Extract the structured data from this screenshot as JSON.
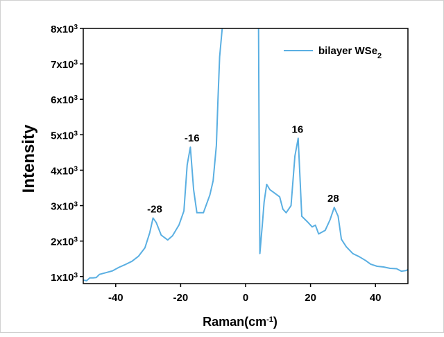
{
  "chart_data": {
    "type": "line",
    "title": "",
    "xlabel": "Raman(cm",
    "xlabel_sup": "-1",
    "xlabel_suffix": ")",
    "ylabel": "Intensity",
    "xlim": [
      -50,
      50
    ],
    "ylim": [
      800,
      8000
    ],
    "grid": false,
    "legend_placement": "top-right",
    "line_color": "#5aafe2",
    "x_ticks": [
      {
        "value": -40,
        "label": "-40"
      },
      {
        "value": -20,
        "label": "-20"
      },
      {
        "value": 0,
        "label": "0"
      },
      {
        "value": 20,
        "label": "20"
      },
      {
        "value": 40,
        "label": "40"
      }
    ],
    "y_ticks": [
      {
        "value": 1000,
        "mant": "1x10",
        "exp": "3"
      },
      {
        "value": 2000,
        "mant": "2x10",
        "exp": "3"
      },
      {
        "value": 3000,
        "mant": "3x10",
        "exp": "3"
      },
      {
        "value": 4000,
        "mant": "4x10",
        "exp": "3"
      },
      {
        "value": 5000,
        "mant": "5x10",
        "exp": "3"
      },
      {
        "value": 6000,
        "mant": "6x10",
        "exp": "3"
      },
      {
        "value": 7000,
        "mant": "7x10",
        "exp": "3"
      },
      {
        "value": 8000,
        "mant": "8x10",
        "exp": "3"
      }
    ],
    "series": [
      {
        "name": "bilayer WSe",
        "name_sub": "2",
        "segments": [
          [
            [
              -50,
              900
            ],
            [
              -49,
              880
            ],
            [
              -48,
              960
            ],
            [
              -47,
              960
            ],
            [
              -46,
              970
            ],
            [
              -45,
              1060
            ],
            [
              -43,
              1110
            ],
            [
              -41,
              1160
            ],
            [
              -39,
              1260
            ],
            [
              -37,
              1340
            ],
            [
              -35,
              1430
            ],
            [
              -33,
              1570
            ],
            [
              -31,
              1810
            ],
            [
              -29.5,
              2240
            ],
            [
              -28.5,
              2650
            ],
            [
              -27.5,
              2520
            ],
            [
              -26,
              2170
            ],
            [
              -24,
              2030
            ],
            [
              -22.5,
              2150
            ],
            [
              -20.5,
              2460
            ],
            [
              -19,
              2850
            ],
            [
              -18,
              4150
            ],
            [
              -17,
              4650
            ],
            [
              -16,
              3450
            ],
            [
              -15,
              2800
            ],
            [
              -13,
              2800
            ],
            [
              -11,
              3300
            ],
            [
              -10,
              3700
            ],
            [
              -9,
              4700
            ],
            [
              -8.5,
              6000
            ],
            [
              -8,
              7200
            ],
            [
              -7.2,
              8000
            ]
          ],
          [
            [
              4,
              8000
            ],
            [
              4.2,
              4000
            ],
            [
              4.4,
              1650
            ],
            [
              5.2,
              2500
            ],
            [
              5.7,
              3100
            ],
            [
              6.5,
              3600
            ],
            [
              7.5,
              3450
            ],
            [
              9,
              3350
            ],
            [
              10.5,
              3250
            ],
            [
              11.5,
              2900
            ],
            [
              12.5,
              2800
            ],
            [
              14,
              3000
            ],
            [
              15.2,
              4400
            ],
            [
              16.2,
              4900
            ],
            [
              17.3,
              2700
            ],
            [
              19,
              2550
            ],
            [
              20.5,
              2400
            ],
            [
              21.5,
              2450
            ],
            [
              22.5,
              2200
            ],
            [
              24.5,
              2300
            ],
            [
              26,
              2600
            ],
            [
              27.3,
              2950
            ],
            [
              28.5,
              2700
            ],
            [
              29.5,
              2050
            ],
            [
              31,
              1840
            ],
            [
              33,
              1650
            ],
            [
              35,
              1560
            ],
            [
              37,
              1450
            ],
            [
              38.5,
              1350
            ],
            [
              40.5,
              1290
            ],
            [
              42.5,
              1270
            ],
            [
              44.5,
              1230
            ],
            [
              46.5,
              1220
            ],
            [
              48,
              1150
            ],
            [
              49.5,
              1170
            ],
            [
              50,
              1200
            ]
          ]
        ]
      }
    ],
    "annotations": [
      {
        "text": "-28",
        "x": -28,
        "y": 2650
      },
      {
        "text": "-16",
        "x": -16.5,
        "y": 4650
      },
      {
        "text": "16",
        "x": 16,
        "y": 4900
      },
      {
        "text": "28",
        "x": 27,
        "y": 2950
      }
    ]
  }
}
